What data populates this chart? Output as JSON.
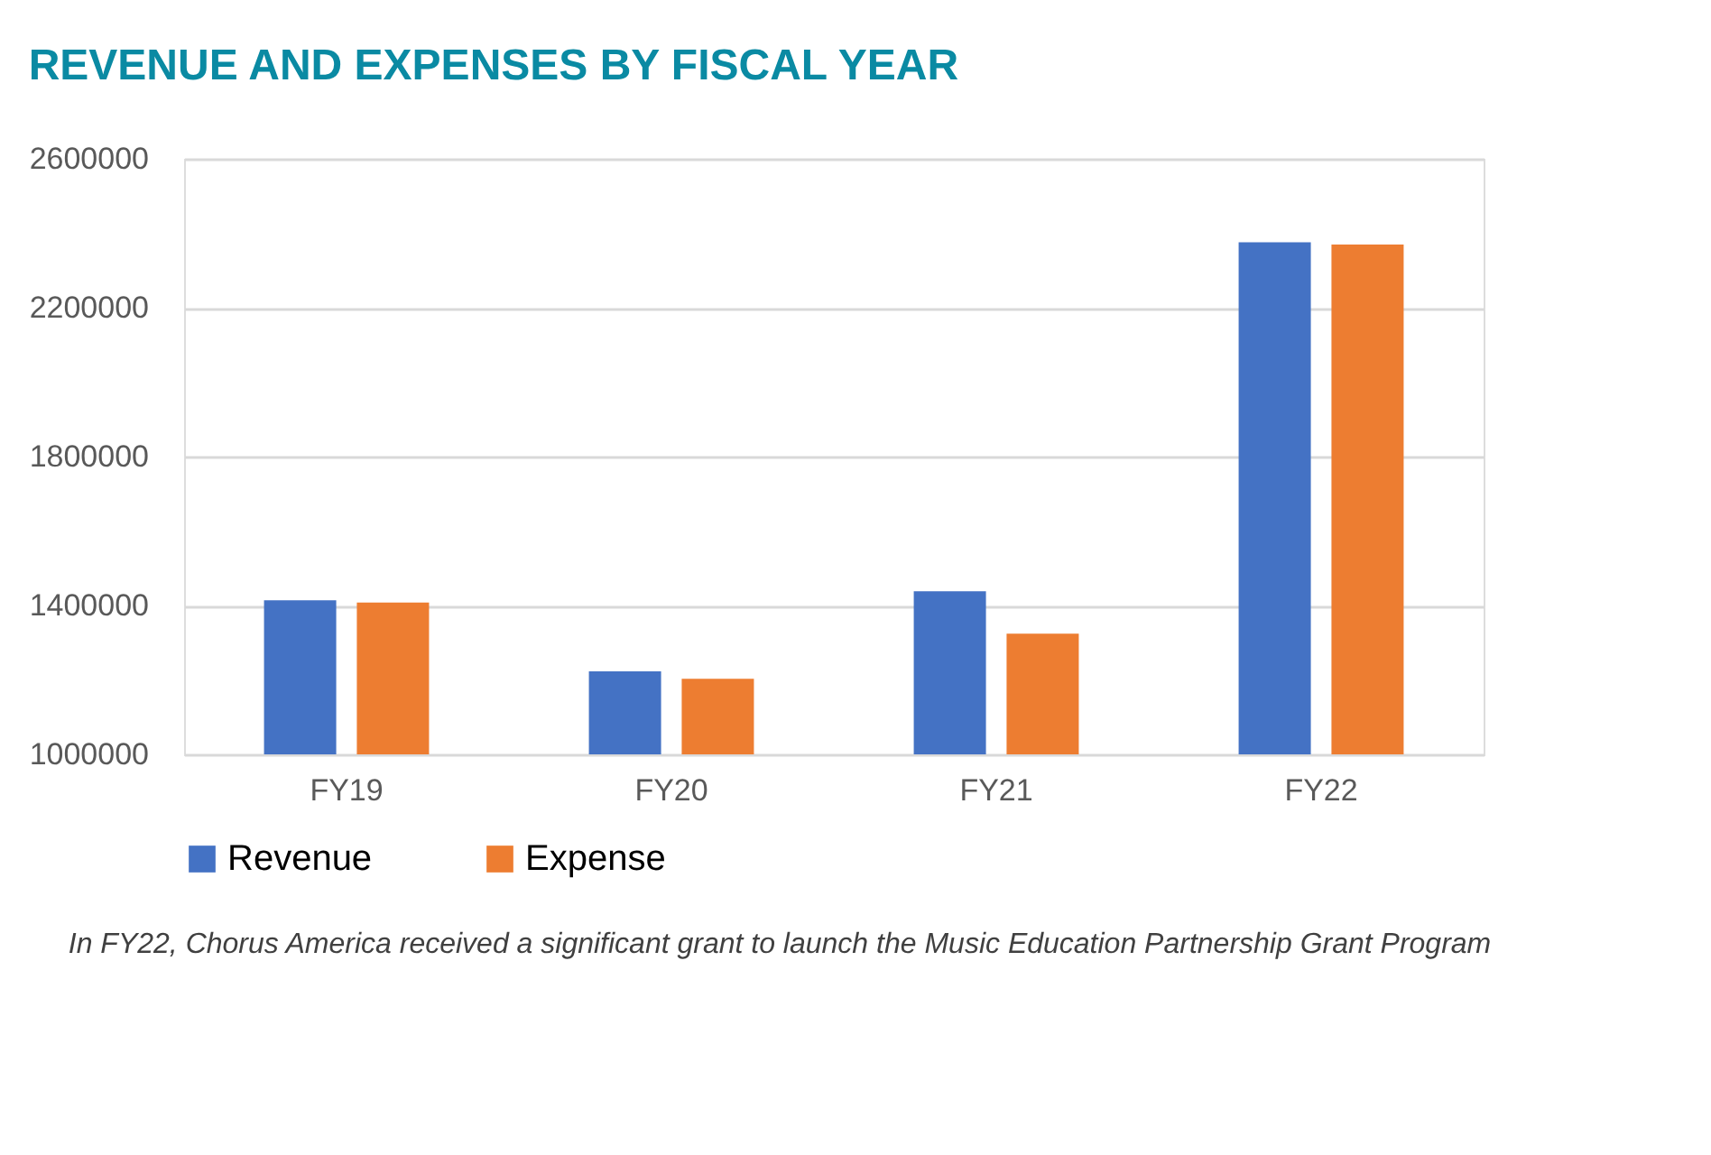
{
  "chart_data": {
    "type": "bar",
    "title": "REVENUE AND EXPENSES BY FISCAL YEAR",
    "categories": [
      "FY19",
      "FY20",
      "FY21",
      "FY22"
    ],
    "series": [
      {
        "name": "Revenue",
        "color": "#4472c4",
        "values": [
          1414000,
          1223000,
          1438000,
          2376000
        ]
      },
      {
        "name": "Expense",
        "color": "#ed7d31",
        "values": [
          1408000,
          1203000,
          1324000,
          2370000
        ]
      }
    ],
    "ylim": [
      1000000,
      2600000
    ],
    "yticks": [
      1000000,
      1400000,
      1800000,
      2200000,
      2600000
    ],
    "grid": "y",
    "legend": "bottom",
    "annotations": [
      "In FY22, Chorus America received a significant grant to launch the Music Education Partnership Grant Program"
    ]
  }
}
